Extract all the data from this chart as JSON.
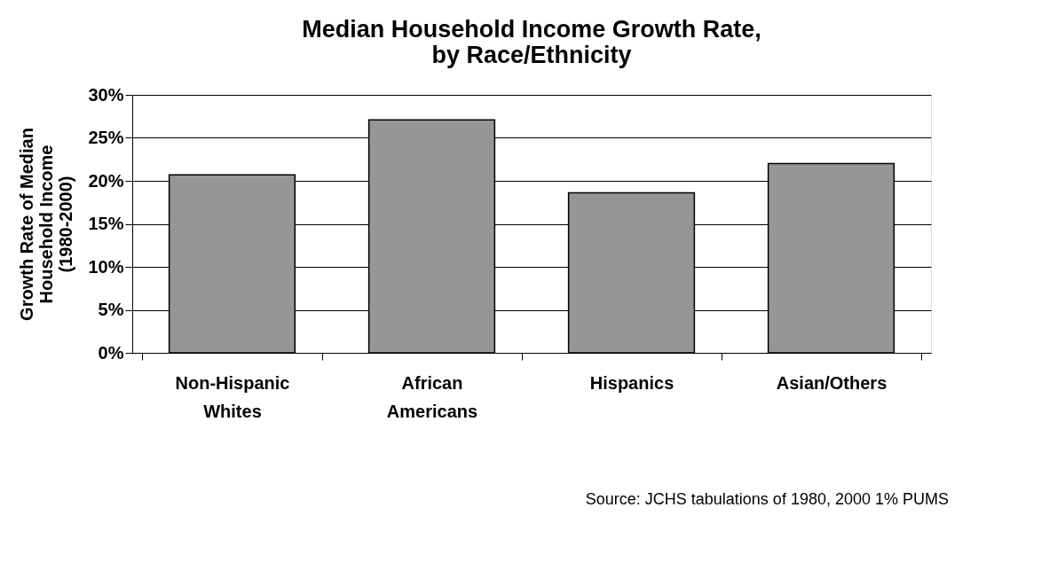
{
  "chart_data": {
    "type": "bar",
    "title": "Median Household Income Growth Rate, by Race/Ethnicity",
    "ylabel": "Growth Rate of Median Household Income (1980-2000)",
    "categories": [
      "Non-Hispanic Whites",
      "African Americans",
      "Hispanics",
      "Asian/Others"
    ],
    "values": [
      20.7,
      27.1,
      18.6,
      22.0
    ],
    "color": "#969696",
    "ylim": [
      0,
      30
    ],
    "yticks": [
      {
        "value": 0,
        "label": "0%"
      },
      {
        "value": 5,
        "label": "5%"
      },
      {
        "value": 10,
        "label": "10%"
      },
      {
        "value": 15,
        "label": "15%"
      },
      {
        "value": 20,
        "label": "20%"
      },
      {
        "value": 25,
        "label": "25%"
      },
      {
        "value": 30,
        "label": "30%"
      }
    ],
    "grid": "y",
    "annotations": [
      "Source: JCHS tabulations of 1980, 2000 1% PUMS"
    ]
  }
}
